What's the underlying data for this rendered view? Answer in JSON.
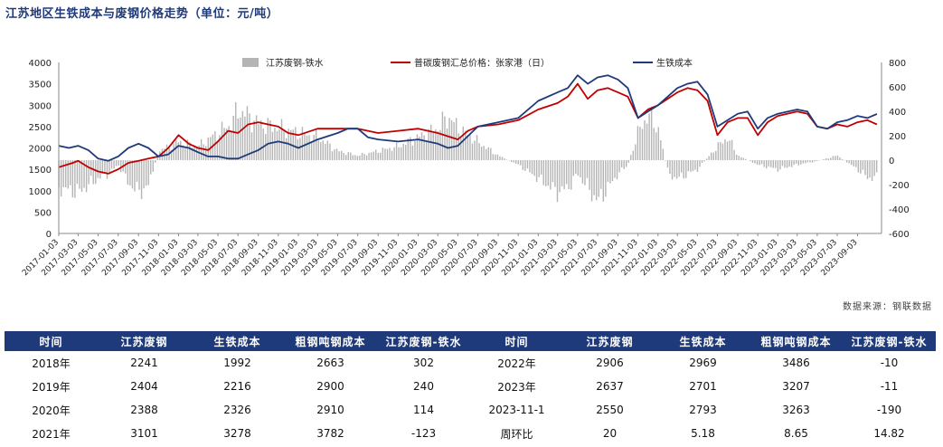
{
  "title": "江苏地区生铁成本与废钢价格走势（单位：元/吨）",
  "source": "数据来源：钢联数据",
  "colors": {
    "bar": "#b4b4b4",
    "scrap": "#c00000",
    "iron": "#1f3a7a",
    "header": "#1f3a7a"
  },
  "chart_data": {
    "type": "line",
    "x_ticks": [
      "2017-01-03",
      "2017-03-03",
      "2017-05-03",
      "2017-07-03",
      "2017-09-03",
      "2017-11-03",
      "2018-01-03",
      "2018-03-03",
      "2018-05-03",
      "2018-07-03",
      "2018-09-03",
      "2018-11-03",
      "2019-01-03",
      "2019-03-03",
      "2019-05-03",
      "2019-07-03",
      "2019-09-03",
      "2019-11-03",
      "2020-01-03",
      "2020-03-03",
      "2020-05-03",
      "2020-07-03",
      "2020-09-03",
      "2020-11-03",
      "2021-01-03",
      "2021-03-03",
      "2021-05-03",
      "2021-07-03",
      "2021-09-03",
      "2021-11-03",
      "2022-01-03",
      "2022-03-03",
      "2022-05-03",
      "2022-07-03",
      "2022-09-03",
      "2022-11-03",
      "2023-01-03",
      "2023-03-03",
      "2023-05-03",
      "2023-07-03",
      "2023-09-03"
    ],
    "y_left": {
      "min": 0,
      "max": 4000,
      "ticks": [
        "0",
        "500",
        "1000",
        "1500",
        "2000",
        "2500",
        "3000",
        "3500",
        "4000"
      ]
    },
    "y_right": {
      "min": -600,
      "max": 800,
      "ticks": [
        "-600",
        "-400",
        "-200",
        "0",
        "200",
        "400",
        "600",
        "800"
      ]
    },
    "legend_position": "top",
    "series": [
      {
        "name": "江苏废钢-铁水",
        "kind": "bar",
        "axis": "right",
        "points": [
          [
            "2017-01-03",
            -300
          ],
          [
            "2017-03-03",
            -350
          ],
          [
            "2017-05-03",
            -200
          ],
          [
            "2017-06-03",
            -150
          ],
          [
            "2017-07-03",
            -50
          ],
          [
            "2017-08-03",
            -250
          ],
          [
            "2017-09-03",
            -350
          ],
          [
            "2017-10-03",
            -280
          ],
          [
            "2017-11-03",
            100
          ],
          [
            "2018-01-03",
            200
          ],
          [
            "2018-03-03",
            150
          ],
          [
            "2018-05-03",
            300
          ],
          [
            "2018-06-15",
            400
          ],
          [
            "2018-07-03",
            550
          ],
          [
            "2018-08-03",
            480
          ],
          [
            "2018-09-03",
            400
          ],
          [
            "2018-11-03",
            350
          ],
          [
            "2019-01-03",
            300
          ],
          [
            "2019-03-03",
            250
          ],
          [
            "2019-05-03",
            100
          ],
          [
            "2019-07-03",
            50
          ],
          [
            "2019-09-03",
            100
          ],
          [
            "2019-11-03",
            150
          ],
          [
            "2020-01-03",
            250
          ],
          [
            "2020-03-03",
            350
          ],
          [
            "2020-04-03",
            480
          ],
          [
            "2020-05-03",
            350
          ],
          [
            "2020-07-03",
            200
          ],
          [
            "2020-09-03",
            50
          ],
          [
            "2020-11-03",
            -50
          ],
          [
            "2021-01-03",
            -200
          ],
          [
            "2021-03-03",
            -350
          ],
          [
            "2021-04-03",
            -300
          ],
          [
            "2021-05-03",
            -150
          ],
          [
            "2021-06-03",
            -300
          ],
          [
            "2021-07-03",
            -450
          ],
          [
            "2021-08-03",
            -300
          ],
          [
            "2021-09-03",
            -150
          ],
          [
            "2021-10-03",
            -50
          ],
          [
            "2021-11-03",
            300
          ],
          [
            "2021-12-03",
            500
          ],
          [
            "2022-01-03",
            350
          ],
          [
            "2022-02-03",
            -150
          ],
          [
            "2022-03-03",
            -200
          ],
          [
            "2022-05-03",
            -100
          ],
          [
            "2022-07-03",
            150
          ],
          [
            "2022-08-03",
            250
          ],
          [
            "2022-09-03",
            50
          ],
          [
            "2022-11-03",
            -50
          ],
          [
            "2023-01-03",
            -100
          ],
          [
            "2023-03-03",
            -50
          ],
          [
            "2023-05-03",
            -10
          ],
          [
            "2023-07-03",
            50
          ],
          [
            "2023-09-03",
            -100
          ],
          [
            "2023-10-03",
            -190
          ],
          [
            "2023-11-01",
            -190
          ]
        ]
      },
      {
        "name": "普碳废钢汇总价格：张家港（日）",
        "kind": "line",
        "axis": "left",
        "points": [
          [
            "2017-01-03",
            1550
          ],
          [
            "2017-02-15",
            1650
          ],
          [
            "2017-03-03",
            1700
          ],
          [
            "2017-04-03",
            1550
          ],
          [
            "2017-05-03",
            1450
          ],
          [
            "2017-06-03",
            1400
          ],
          [
            "2017-07-03",
            1500
          ],
          [
            "2017-08-03",
            1650
          ],
          [
            "2017-09-03",
            1700
          ],
          [
            "2017-10-03",
            1750
          ],
          [
            "2017-11-03",
            1800
          ],
          [
            "2017-12-03",
            2000
          ],
          [
            "2018-01-03",
            2300
          ],
          [
            "2018-02-03",
            2100
          ],
          [
            "2018-03-03",
            2000
          ],
          [
            "2018-04-03",
            1950
          ],
          [
            "2018-05-03",
            2150
          ],
          [
            "2018-06-03",
            2400
          ],
          [
            "2018-07-03",
            2350
          ],
          [
            "2018-08-03",
            2550
          ],
          [
            "2018-09-03",
            2600
          ],
          [
            "2018-10-03",
            2550
          ],
          [
            "2018-11-03",
            2500
          ],
          [
            "2018-12-03",
            2350
          ],
          [
            "2019-01-03",
            2300
          ],
          [
            "2019-03-03",
            2450
          ],
          [
            "2019-05-03",
            2450
          ],
          [
            "2019-07-03",
            2450
          ],
          [
            "2019-09-03",
            2350
          ],
          [
            "2019-11-03",
            2400
          ],
          [
            "2020-01-03",
            2450
          ],
          [
            "2020-03-03",
            2350
          ],
          [
            "2020-05-03",
            2200
          ],
          [
            "2020-06-03",
            2400
          ],
          [
            "2020-07-03",
            2500
          ],
          [
            "2020-09-03",
            2550
          ],
          [
            "2020-11-03",
            2650
          ],
          [
            "2021-01-03",
            2900
          ],
          [
            "2021-03-03",
            3050
          ],
          [
            "2021-04-03",
            3200
          ],
          [
            "2021-05-03",
            3500
          ],
          [
            "2021-06-03",
            3150
          ],
          [
            "2021-07-03",
            3350
          ],
          [
            "2021-08-03",
            3400
          ],
          [
            "2021-09-03",
            3300
          ],
          [
            "2021-10-03",
            3200
          ],
          [
            "2021-11-03",
            2700
          ],
          [
            "2021-12-03",
            2900
          ],
          [
            "2022-01-03",
            3000
          ],
          [
            "2022-03-03",
            3300
          ],
          [
            "2022-04-03",
            3400
          ],
          [
            "2022-05-03",
            3350
          ],
          [
            "2022-06-03",
            3100
          ],
          [
            "2022-07-03",
            2300
          ],
          [
            "2022-08-03",
            2600
          ],
          [
            "2022-09-03",
            2700
          ],
          [
            "2022-10-03",
            2700
          ],
          [
            "2022-11-03",
            2300
          ],
          [
            "2022-12-03",
            2600
          ],
          [
            "2023-01-03",
            2750
          ],
          [
            "2023-03-03",
            2850
          ],
          [
            "2023-04-03",
            2800
          ],
          [
            "2023-05-03",
            2500
          ],
          [
            "2023-06-03",
            2450
          ],
          [
            "2023-07-03",
            2550
          ],
          [
            "2023-08-03",
            2500
          ],
          [
            "2023-09-03",
            2600
          ],
          [
            "2023-10-03",
            2650
          ],
          [
            "2023-11-01",
            2550
          ]
        ]
      },
      {
        "name": "生铁成本",
        "kind": "line",
        "axis": "left",
        "points": [
          [
            "2017-01-03",
            2050
          ],
          [
            "2017-02-03",
            2000
          ],
          [
            "2017-03-03",
            2050
          ],
          [
            "2017-04-03",
            1950
          ],
          [
            "2017-05-03",
            1750
          ],
          [
            "2017-06-03",
            1700
          ],
          [
            "2017-07-03",
            1800
          ],
          [
            "2017-08-03",
            2000
          ],
          [
            "2017-09-03",
            2100
          ],
          [
            "2017-10-03",
            2000
          ],
          [
            "2017-11-03",
            1800
          ],
          [
            "2017-12-03",
            1850
          ],
          [
            "2018-01-03",
            2050
          ],
          [
            "2018-02-03",
            2000
          ],
          [
            "2018-03-03",
            1900
          ],
          [
            "2018-04-03",
            1800
          ],
          [
            "2018-05-03",
            1800
          ],
          [
            "2018-06-03",
            1750
          ],
          [
            "2018-07-03",
            1750
          ],
          [
            "2018-08-03",
            1850
          ],
          [
            "2018-09-03",
            1950
          ],
          [
            "2018-10-03",
            2100
          ],
          [
            "2018-11-03",
            2150
          ],
          [
            "2018-12-03",
            2100
          ],
          [
            "2019-01-03",
            2000
          ],
          [
            "2019-03-03",
            2200
          ],
          [
            "2019-05-03",
            2350
          ],
          [
            "2019-06-03",
            2450
          ],
          [
            "2019-07-03",
            2450
          ],
          [
            "2019-08-03",
            2250
          ],
          [
            "2019-09-03",
            2200
          ],
          [
            "2019-11-03",
            2150
          ],
          [
            "2020-01-03",
            2200
          ],
          [
            "2020-03-03",
            2100
          ],
          [
            "2020-04-03",
            2000
          ],
          [
            "2020-05-03",
            2050
          ],
          [
            "2020-07-03",
            2500
          ],
          [
            "2020-09-03",
            2600
          ],
          [
            "2020-11-03",
            2700
          ],
          [
            "2021-01-03",
            3100
          ],
          [
            "2021-03-03",
            3300
          ],
          [
            "2021-04-03",
            3400
          ],
          [
            "2021-05-03",
            3700
          ],
          [
            "2021-06-03",
            3500
          ],
          [
            "2021-07-03",
            3650
          ],
          [
            "2021-08-03",
            3700
          ],
          [
            "2021-09-03",
            3600
          ],
          [
            "2021-10-03",
            3400
          ],
          [
            "2021-11-03",
            2700
          ],
          [
            "2021-12-03",
            2850
          ],
          [
            "2022-01-03",
            3000
          ],
          [
            "2022-03-03",
            3400
          ],
          [
            "2022-04-03",
            3500
          ],
          [
            "2022-05-03",
            3550
          ],
          [
            "2022-06-03",
            3250
          ],
          [
            "2022-07-03",
            2500
          ],
          [
            "2022-08-03",
            2650
          ],
          [
            "2022-09-03",
            2800
          ],
          [
            "2022-10-03",
            2850
          ],
          [
            "2022-11-03",
            2450
          ],
          [
            "2022-12-03",
            2700
          ],
          [
            "2023-01-03",
            2800
          ],
          [
            "2023-03-03",
            2900
          ],
          [
            "2023-04-03",
            2850
          ],
          [
            "2023-05-03",
            2500
          ],
          [
            "2023-06-03",
            2450
          ],
          [
            "2023-07-03",
            2600
          ],
          [
            "2023-08-03",
            2650
          ],
          [
            "2023-09-03",
            2750
          ],
          [
            "2023-10-03",
            2700
          ],
          [
            "2023-11-01",
            2793
          ]
        ]
      }
    ]
  },
  "table": {
    "headers": [
      "时间",
      "江苏废钢",
      "生铁成本",
      "粗钢吨钢成本",
      "江苏废钢-铁水",
      "时间",
      "江苏废钢",
      "生铁成本",
      "粗钢吨钢成本",
      "江苏废钢-铁水"
    ],
    "rows": [
      [
        {
          "v": "2018年"
        },
        {
          "v": "2241"
        },
        {
          "v": "1992"
        },
        {
          "v": "2663"
        },
        {
          "v": "302",
          "c": "red"
        },
        {
          "v": "2022年"
        },
        {
          "v": "2906"
        },
        {
          "v": "2969"
        },
        {
          "v": "3486"
        },
        {
          "v": "-10",
          "c": "green"
        }
      ],
      [
        {
          "v": "2019年"
        },
        {
          "v": "2404"
        },
        {
          "v": "2216"
        },
        {
          "v": "2900"
        },
        {
          "v": "240",
          "c": "red"
        },
        {
          "v": "2023年"
        },
        {
          "v": "2637"
        },
        {
          "v": "2701"
        },
        {
          "v": "3207"
        },
        {
          "v": "-11",
          "c": "green"
        }
      ],
      [
        {
          "v": "2020年"
        },
        {
          "v": "2388"
        },
        {
          "v": "2326"
        },
        {
          "v": "2910"
        },
        {
          "v": "114",
          "c": "red"
        },
        {
          "v": "2023-11-1"
        },
        {
          "v": "2550"
        },
        {
          "v": "2793"
        },
        {
          "v": "3263"
        },
        {
          "v": "-190",
          "c": "green"
        }
      ],
      [
        {
          "v": "2021年"
        },
        {
          "v": "3101"
        },
        {
          "v": "3278"
        },
        {
          "v": "3782"
        },
        {
          "v": "-123",
          "c": "green"
        },
        {
          "v": "周环比"
        },
        {
          "v": "20",
          "c": "red"
        },
        {
          "v": "5.18",
          "c": "red"
        },
        {
          "v": "8.65",
          "c": "red"
        },
        {
          "v": "14.82",
          "c": "red"
        }
      ]
    ]
  }
}
